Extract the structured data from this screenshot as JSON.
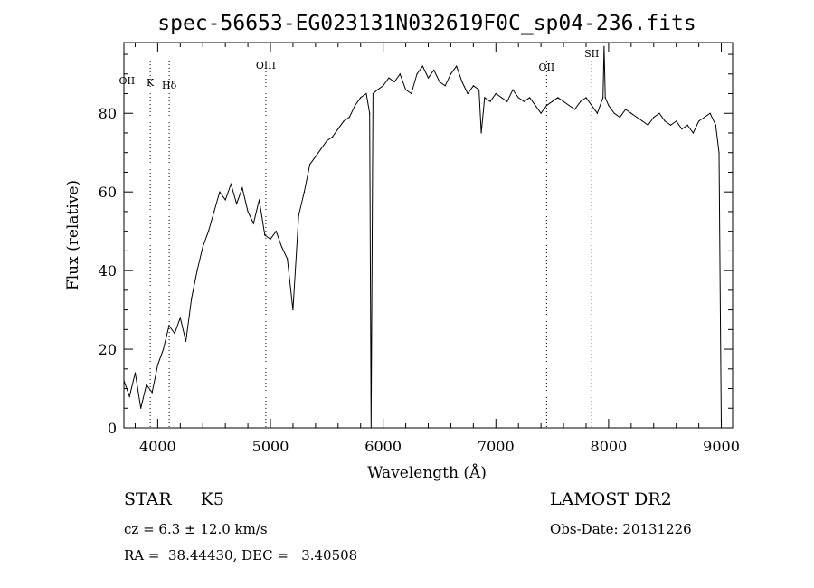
{
  "chart_data": {
    "type": "line",
    "title": "spec-56653-EG023131N032619F0C_sp04-236.fits",
    "xlabel": "Wavelength (Å)",
    "ylabel": "Flux (relative)",
    "xlim": [
      3700,
      9100
    ],
    "ylim": [
      0,
      98
    ],
    "x_ticks": [
      4000,
      5000,
      6000,
      7000,
      8000,
      9000
    ],
    "y_ticks": [
      0,
      20,
      40,
      60,
      80
    ],
    "grid": false,
    "series": [
      {
        "x": [
          3700,
          3750,
          3800,
          3850,
          3900,
          3950,
          4000,
          4050,
          4100,
          4150,
          4200,
          4250,
          4300,
          4350,
          4400,
          4450,
          4500,
          4550,
          4600,
          4650,
          4700,
          4750,
          4800,
          4850,
          4900,
          4950,
          5000,
          5050,
          5100,
          5150,
          5200,
          5250,
          5300,
          5350,
          5400,
          5450,
          5500,
          5550,
          5600,
          5650,
          5700,
          5750,
          5800,
          5850,
          5880,
          5893,
          5910,
          5950,
          6000,
          6050,
          6100,
          6150,
          6200,
          6250,
          6300,
          6350,
          6400,
          6450,
          6500,
          6550,
          6600,
          6650,
          6700,
          6750,
          6800,
          6850,
          6870,
          6900,
          6950,
          7000,
          7050,
          7100,
          7150,
          7200,
          7250,
          7300,
          7350,
          7400,
          7450,
          7500,
          7550,
          7600,
          7650,
          7700,
          7750,
          7800,
          7850,
          7900,
          7950,
          7960,
          7970,
          8000,
          8050,
          8100,
          8150,
          8200,
          8250,
          8300,
          8350,
          8400,
          8450,
          8500,
          8550,
          8600,
          8650,
          8700,
          8750,
          8800,
          8850,
          8900,
          8950,
          8980,
          9000
        ],
        "y": [
          12,
          8,
          14,
          5,
          11,
          9,
          16,
          20,
          26,
          24,
          28,
          22,
          33,
          40,
          46,
          50,
          55,
          60,
          58,
          62,
          57,
          61,
          55,
          52,
          58,
          49,
          48,
          50,
          46,
          43,
          30,
          54,
          60,
          67,
          69,
          71,
          73,
          74,
          76,
          78,
          79,
          82,
          84,
          85,
          80,
          0,
          85,
          86,
          87,
          89,
          88,
          90,
          86,
          85,
          90,
          92,
          89,
          91,
          88,
          87,
          90,
          92,
          88,
          85,
          87,
          86,
          75,
          84,
          83,
          85,
          84,
          83,
          86,
          84,
          83,
          84,
          82,
          80,
          82,
          83,
          84,
          83,
          82,
          81,
          83,
          84,
          82,
          80,
          84,
          97,
          84,
          82,
          80,
          79,
          81,
          80,
          79,
          78,
          77,
          79,
          80,
          78,
          77,
          78,
          76,
          77,
          75,
          78,
          79,
          80,
          77,
          70,
          0
        ],
        "name": ""
      }
    ],
    "annotations": [
      {
        "label": "OII",
        "x": 3727,
        "line": false
      },
      {
        "label": "K",
        "x": 3934,
        "line": true
      },
      {
        "label": "Hδ",
        "x": 4102,
        "line": true
      },
      {
        "label": "OIII",
        "x": 4959,
        "line": true
      },
      {
        "label": "OII",
        "x": 7450,
        "line": true
      },
      {
        "label": "SII",
        "x": 7850,
        "line": true
      }
    ]
  },
  "info": {
    "class_text": "STAR",
    "subclass_text": "K5",
    "cz_text": "cz = 6.3 ± 12.0 km/s",
    "radec_text": "RA =  38.44430, DEC =   3.40508",
    "survey_text": "LAMOST DR2",
    "obsdate_text": "Obs-Date: 20131226"
  }
}
